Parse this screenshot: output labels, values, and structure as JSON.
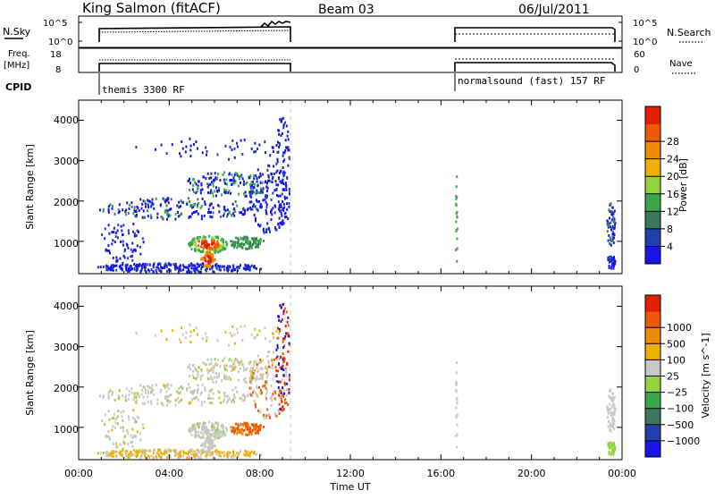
{
  "header": {
    "station": "King Salmon (fitACF)",
    "beam": "Beam 03",
    "date": "06/Jul/2011"
  },
  "top_panels": {
    "nsky_label": "N.Sky",
    "nsky_ticks": [
      "10^5",
      "10^0"
    ],
    "nsearch_label": "N.Search",
    "nsearch_ticks": [
      "10^5",
      "10^0"
    ],
    "freq_label_1": "Freq.",
    "freq_label_2": "[MHz]",
    "freq_ticks": [
      "18",
      "8"
    ],
    "nave_label": "Nave",
    "nave_ticks": [
      "60",
      "0"
    ],
    "cpid_label": "CPID",
    "cpid_1": "themis 3300 RF",
    "cpid_2": "normalsound (fast) 157 RF"
  },
  "colors": {
    "power": [
      "#1616e6",
      "#2040b0",
      "#3a7a5a",
      "#3aa84a",
      "#8ed63a",
      "#f0b000",
      "#f08a00",
      "#ee5a00",
      "#e02000"
    ],
    "velocity": [
      "#1616e6",
      "#2040b0",
      "#3a7a5a",
      "#3aa84a",
      "#8ed63a",
      "#c8c8c4",
      "#f0b000",
      "#f08a00",
      "#ee5a00",
      "#e02000"
    ]
  },
  "chart_data": [
    {
      "type": "line",
      "title": "King Salmon (fitACF)",
      "ylabel": "N.Sky",
      "x_range": [
        "00:00",
        "24:00"
      ],
      "segments": [
        {
          "cpid": "themis 3300 RF",
          "start": "00:52",
          "end": "09:20"
        },
        {
          "cpid": "normalsound (fast) 157 RF",
          "start": "16:40",
          "end": "24:00"
        }
      ]
    },
    {
      "type": "heatmap",
      "ylabel": "Slant Range [km]",
      "xlabel": "Time UT",
      "x_ticks": [
        "00:00",
        "04:00",
        "08:00",
        "12:00",
        "16:00",
        "20:00",
        "00:00"
      ],
      "y_ticks": [
        "1000",
        "2000",
        "3000",
        "4000"
      ],
      "colorbar_label": "Power [dB]",
      "colorbar_ticks": [
        "4",
        "8",
        "12",
        "16",
        "20",
        "24",
        "28"
      ]
    },
    {
      "type": "heatmap",
      "ylabel": "Slant Range [km]",
      "xlabel": "Time UT",
      "x_ticks": [
        "00:00",
        "04:00",
        "08:00",
        "12:00",
        "16:00",
        "20:00",
        "00:00"
      ],
      "y_ticks": [
        "1000",
        "2000",
        "3000",
        "4000"
      ],
      "colorbar_label": "Velocity [m s^-1]",
      "colorbar_ticks": [
        "-1000",
        "-500",
        "-100",
        "-25",
        "25",
        "100",
        "500",
        "1000"
      ]
    }
  ],
  "x_axis": {
    "ticks": [
      "00:00",
      "04:00",
      "08:00",
      "12:00",
      "16:00",
      "20:00",
      "00:00"
    ],
    "label": "Time UT"
  }
}
